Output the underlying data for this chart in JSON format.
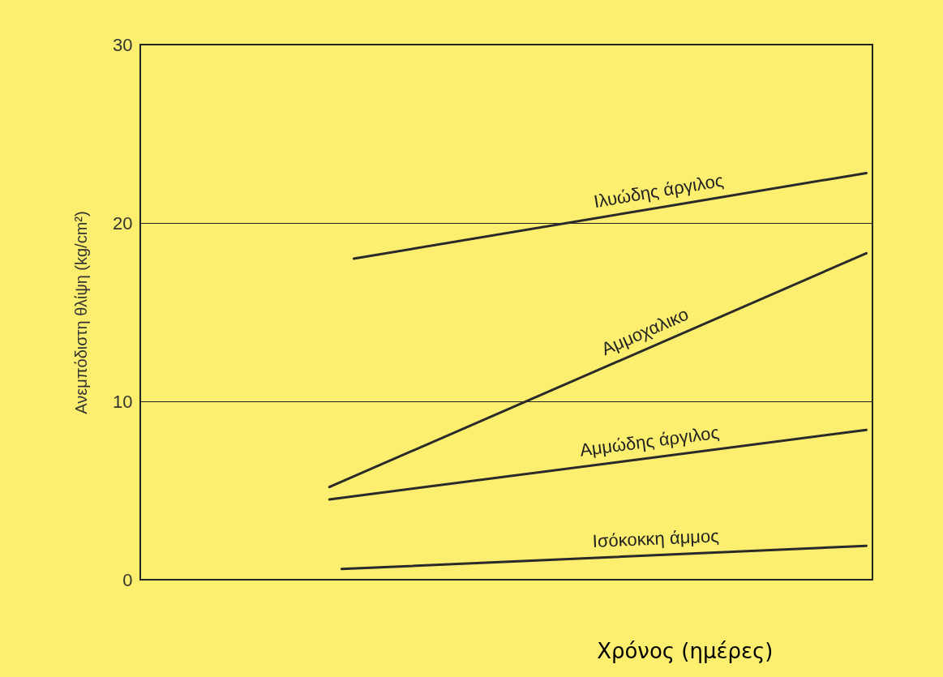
{
  "chart_data": {
    "type": "line",
    "xlabel": "Χρόνος (ημέρες)",
    "ylabel": "Ανεμπόδιστη θλίψη (kg/cm²)",
    "categories": [
      null,
      null,
      null,
      null,
      null,
      null,
      null,
      null,
      null,
      null,
      null,
      null,
      null,
      null,
      null,
      null,
      null,
      null,
      null,
      null,
      null,
      null,
      null,
      null,
      null,
      null,
      null,
      null,
      null,
      null,
      null,
      null,
      null,
      null,
      null,
      null,
      null,
      null,
      null,
      null,
      null,
      null,
      null,
      null,
      null,
      null,
      null,
      null,
      null,
      null,
      null,
      null,
      null,
      null,
      null,
      null,
      null,
      null,
      null,
      null
    ],
    "series": [
      {
        "name": "Ιλυώδης άργιλος",
        "color": "#2a2a2a",
        "values": [
          null,
          null,
          null,
          null,
          null,
          null,
          null,
          null,
          null,
          null,
          null,
          null,
          null,
          null,
          null,
          null,
          null,
          18.0,
          null,
          null,
          null,
          null,
          null,
          null,
          null,
          null,
          null,
          null,
          null,
          null,
          null,
          null,
          null,
          null,
          null,
          null,
          null,
          null,
          null,
          null,
          null,
          null,
          null,
          null,
          null,
          null,
          null,
          null,
          null,
          null,
          null,
          null,
          null,
          null,
          null,
          null,
          null,
          null,
          null,
          22.8
        ]
      },
      {
        "name": "Αμμοχαλικο",
        "color": "#2a2a2a",
        "values": [
          null,
          null,
          null,
          null,
          null,
          null,
          null,
          null,
          null,
          null,
          null,
          null,
          null,
          null,
          null,
          5.2,
          null,
          null,
          null,
          null,
          null,
          null,
          null,
          null,
          null,
          null,
          null,
          null,
          null,
          null,
          null,
          null,
          null,
          null,
          null,
          null,
          null,
          null,
          null,
          null,
          null,
          null,
          null,
          null,
          null,
          null,
          null,
          null,
          null,
          null,
          null,
          null,
          null,
          null,
          null,
          null,
          null,
          null,
          null,
          18.3
        ]
      },
      {
        "name": "Αμμώδης άργιλος",
        "color": "#2a2a2a",
        "values": [
          null,
          null,
          null,
          null,
          null,
          null,
          null,
          null,
          null,
          null,
          null,
          null,
          null,
          null,
          null,
          4.5,
          null,
          null,
          null,
          null,
          null,
          null,
          null,
          null,
          null,
          null,
          null,
          null,
          null,
          null,
          null,
          null,
          null,
          null,
          null,
          null,
          null,
          null,
          null,
          null,
          null,
          null,
          null,
          null,
          null,
          null,
          null,
          null,
          null,
          null,
          null,
          null,
          null,
          null,
          null,
          null,
          null,
          null,
          null,
          8.4
        ]
      },
      {
        "name": "Ισόκοκκη άμμος",
        "color": "#2a2a2a",
        "values": [
          null,
          null,
          null,
          null,
          null,
          null,
          null,
          null,
          null,
          null,
          null,
          null,
          null,
          null,
          null,
          null,
          0.6,
          null,
          null,
          null,
          null,
          null,
          null,
          null,
          null,
          null,
          null,
          null,
          null,
          null,
          null,
          null,
          null,
          null,
          null,
          null,
          null,
          null,
          null,
          null,
          null,
          null,
          null,
          null,
          null,
          null,
          null,
          null,
          null,
          null,
          null,
          null,
          null,
          null,
          null,
          null,
          null,
          null,
          null,
          1.9
        ]
      }
    ],
    "ylim": [
      0,
      30
    ],
    "yticks": [
      0,
      10,
      20,
      30
    ],
    "grid": "y",
    "legend": false,
    "marker": "none",
    "line_style": "solid"
  }
}
